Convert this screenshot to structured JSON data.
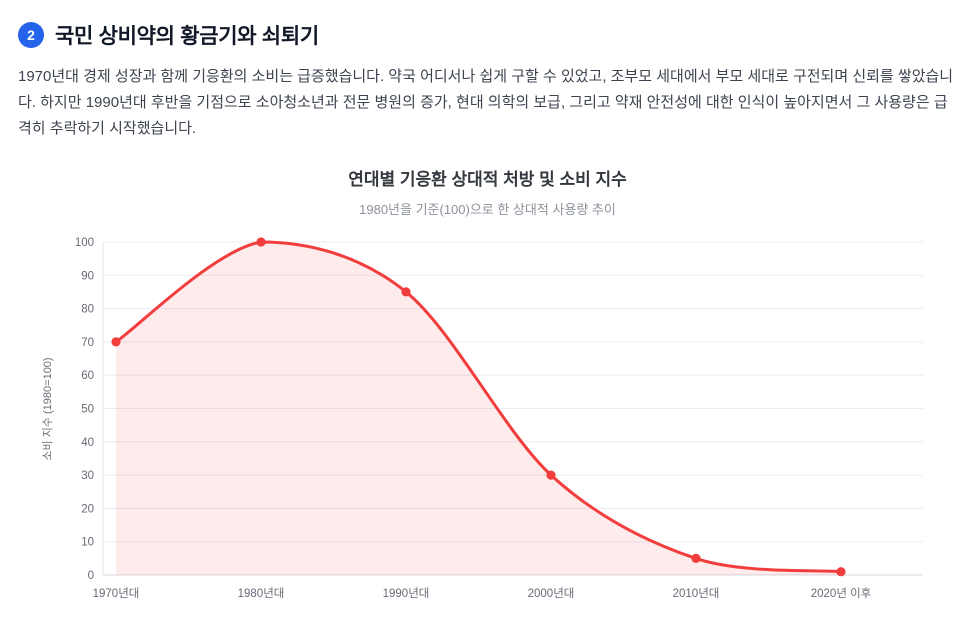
{
  "section": {
    "badge": "2",
    "title": "국민 상비약의 황금기와 쇠퇴기",
    "paragraph": "1970년대 경제 성장과 함께 기응환의 소비는 급증했습니다. 약국 어디서나 쉽게 구할 수 있었고, 조부모 세대에서 부모 세대로 구전되며 신뢰를 쌓았습니다. 하지만 1990년대 후반을 기점으로 소아청소년과 전문 병원의 증가, 현대 의학의 보급, 그리고 약재 안전성에 대한 인식이 높아지면서 그 사용량은 급격히 추락하기 시작했습니다."
  },
  "colors": {
    "badge_bg": "#2563eb"
  },
  "chart_data": {
    "type": "area",
    "title": "연대별 기응환 상대적 처방 및 소비 지수",
    "subtitle": "1980년을 기준(100)으로 한 상대적 사용량 추이",
    "categories": [
      "1970년대",
      "1980년대",
      "1990년대",
      "2000년대",
      "2010년대",
      "2020년 이후"
    ],
    "values": [
      70,
      100,
      85,
      30,
      5,
      1
    ],
    "xlabel": "",
    "ylabel": "소비 지수 (1980=100)",
    "ylim": [
      0,
      100
    ],
    "ytick_step": 10,
    "grid": true,
    "legend": "none",
    "line_color": "#f23d3d",
    "fill_color": "rgba(242,61,61,0.10)"
  }
}
